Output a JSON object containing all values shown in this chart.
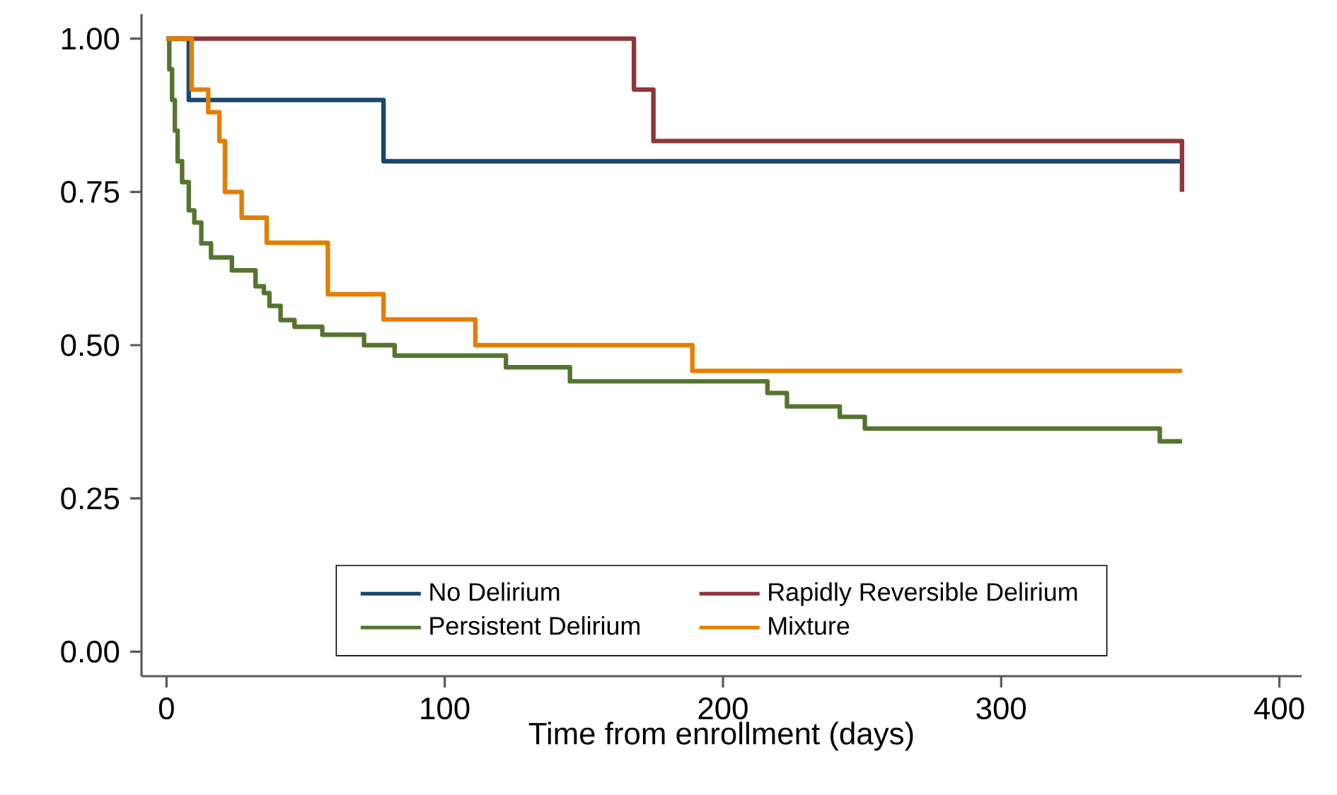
{
  "chart_data": {
    "type": "step",
    "xlabel": "Time from enrollment (days)",
    "xlim": [
      -9,
      408
    ],
    "ylim": [
      -0.04,
      1.04
    ],
    "xticks": [
      0,
      100,
      200,
      300,
      400
    ],
    "yticks": [
      {
        "value": 0,
        "label": "0.00"
      },
      {
        "value": 0.25,
        "label": "0.25"
      },
      {
        "value": 0.5,
        "label": "0.50"
      },
      {
        "value": 0.75,
        "label": "0.75"
      },
      {
        "value": 1,
        "label": "1.00"
      }
    ],
    "legend": "bottom",
    "grid": false,
    "marker": "none",
    "line_style": "solid",
    "series": [
      {
        "name": "No Delirium",
        "color": "#1a476f",
        "x": [
          0,
          8,
          78,
          365
        ],
        "values": [
          1,
          0.9,
          0.8,
          0.8
        ]
      },
      {
        "name": "Rapidly Reversible Delirium",
        "color": "#90353b",
        "x": [
          0,
          168,
          175,
          365
        ],
        "values": [
          1,
          0.917,
          0.833,
          0.75
        ]
      },
      {
        "name": "Persistent Delirium",
        "color": "#55752f",
        "x": [
          0,
          1,
          2,
          3,
          4,
          5.6,
          8,
          10,
          12.5,
          16,
          23.5,
          32,
          35,
          37,
          41,
          46,
          56,
          71,
          82,
          122,
          145,
          216,
          223,
          242,
          251,
          357,
          365
        ],
        "values": [
          1,
          0.95,
          0.9,
          0.85,
          0.8,
          0.766,
          0.72,
          0.7,
          0.666,
          0.643,
          0.622,
          0.596,
          0.585,
          0.564,
          0.541,
          0.53,
          0.517,
          0.5,
          0.483,
          0.464,
          0.441,
          0.422,
          0.4,
          0.383,
          0.364,
          0.343,
          0.343
        ]
      },
      {
        "name": "Mixture",
        "color": "#e37e00",
        "x": [
          0,
          9,
          15,
          19,
          21,
          27,
          36,
          58,
          78,
          111,
          189,
          365
        ],
        "values": [
          1,
          0.917,
          0.88,
          0.833,
          0.75,
          0.708,
          0.667,
          0.583,
          0.542,
          0.5,
          0.458,
          0.458
        ]
      }
    ]
  }
}
